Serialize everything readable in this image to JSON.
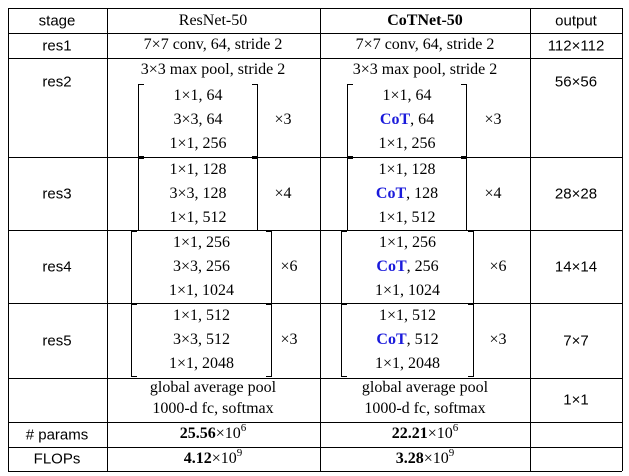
{
  "header": [
    "stage",
    "ResNet-50",
    "CoTNet-50",
    "output"
  ],
  "rows": [
    {
      "stage": "res1",
      "resnet": {
        "lines": [
          "7×7 conv, 64, stride 2"
        ]
      },
      "cotnet": {
        "lines": [
          "7×7 conv, 64, stride 2"
        ]
      },
      "output": "112×112"
    },
    {
      "stage": "res2",
      "resnet": {
        "lines": [
          "3×3 max pool, stride 2"
        ],
        "block": [
          "1×1, 64",
          "3×3, 64",
          "1×1, 256"
        ],
        "repeat": "×3"
      },
      "cotnet": {
        "lines": [
          "3×3 max pool, stride 2"
        ],
        "block": [
          "1×1, 64",
          {
            "bold": "CoT",
            "text": ", 64"
          },
          "1×1, 256"
        ],
        "repeat": "×3"
      },
      "output": "56×56"
    },
    {
      "stage": "res3",
      "resnet": {
        "block": [
          "1×1, 128",
          "3×3, 128",
          "1×1, 512"
        ],
        "repeat": "×4"
      },
      "cotnet": {
        "block": [
          "1×1, 128",
          {
            "bold": "CoT",
            "text": ", 128"
          },
          "1×1, 512"
        ],
        "repeat": "×4"
      },
      "output": "28×28"
    },
    {
      "stage": "res4",
      "resnet": {
        "block": [
          "1×1, 256",
          "3×3, 256",
          "1×1, 1024"
        ],
        "repeat": "×6"
      },
      "cotnet": {
        "block": [
          "1×1, 256",
          {
            "bold": "CoT",
            "text": ", 256"
          },
          "1×1, 1024"
        ],
        "repeat": "×6"
      },
      "output": "14×14"
    },
    {
      "stage": "res5",
      "resnet": {
        "block": [
          "1×1, 512",
          "3×3, 512",
          "1×1, 2048"
        ],
        "repeat": "×3"
      },
      "cotnet": {
        "block": [
          "1×1, 512",
          {
            "bold": "CoT",
            "text": ", 512"
          },
          "1×1, 2048"
        ],
        "repeat": "×3"
      },
      "output": "7×7"
    },
    {
      "resnet": {
        "lines": [
          "global average pool",
          "1000-d fc, softmax"
        ]
      },
      "cotnet": {
        "lines": [
          "global average pool",
          "1000-d fc, softmax"
        ]
      },
      "output": "1×1"
    },
    {
      "stage": "# params",
      "resnet": {
        "lines": [
          {
            "bold": "25.56",
            "text": "×10",
            "exp": "6"
          }
        ]
      },
      "cotnet": {
        "lines": [
          {
            "bold": "22.21",
            "text": "×10",
            "exp": "6"
          }
        ]
      }
    },
    {
      "stage": "FLOPs",
      "resnet": {
        "lines": [
          {
            "bold": "4.12",
            "text": "×10",
            "exp": "9"
          }
        ]
      },
      "cotnet": {
        "lines": [
          {
            "bold": "3.28",
            "text": "×10",
            "exp": "9"
          }
        ]
      }
    }
  ]
}
